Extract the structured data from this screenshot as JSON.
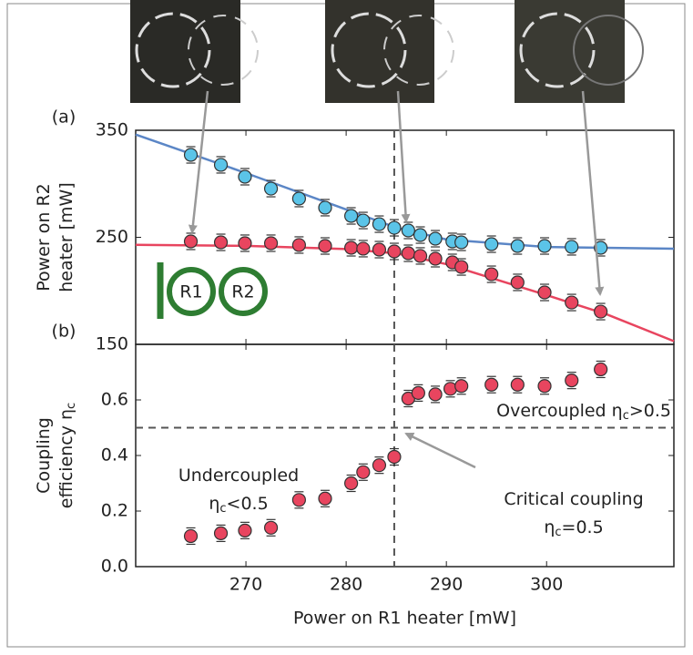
{
  "chart_data": [
    {
      "type": "scatter",
      "panel_label": "(a)",
      "ylabel": [
        "Power on R2",
        "heater [mW]"
      ],
      "xlim": [
        259,
        312.7
      ],
      "xticks": [
        270,
        280,
        290,
        300
      ],
      "ylim": [
        150,
        350
      ],
      "yticks": [
        150,
        250,
        350
      ],
      "vline": 284.8,
      "icon_labels": [
        "R1",
        "R2"
      ],
      "x": [
        264.5,
        267.5,
        269.9,
        272.5,
        275.3,
        277.9,
        280.5,
        281.7,
        283.3,
        284.8,
        286.2,
        287.4,
        288.9,
        290.6,
        291.5,
        294.5,
        297.1,
        299.8,
        302.5,
        305.4
      ],
      "series": [
        {
          "color": "#5bc4e8",
          "values": [
            327,
            317.7,
            306.6,
            295.5,
            286.2,
            277.7,
            270,
            265.7,
            262.3,
            258.9,
            256.4,
            252.1,
            248.7,
            246.2,
            245.3,
            243.6,
            241.9,
            241.9,
            241.1,
            240.2
          ]
        },
        {
          "color": "#e8455f",
          "values": [
            246.2,
            245.3,
            244.5,
            244.5,
            242.8,
            241.9,
            240.2,
            239.4,
            238.5,
            236.8,
            235.1,
            232.6,
            230,
            226.6,
            222.3,
            215.5,
            207.9,
            198.5,
            189.1,
            180.6
          ]
        }
      ],
      "fit_lines": [
        {
          "color": "#5b86c6",
          "x": [
            259,
            270,
            280,
            285,
            290,
            300,
            312.7
          ],
          "values": [
            346,
            310,
            276,
            259,
            248,
            241,
            239.4
          ]
        },
        {
          "color": "#e8455f",
          "x": [
            259,
            270,
            280,
            285,
            290,
            300,
            306,
            312.7
          ],
          "values": [
            243,
            242,
            239,
            235,
            225,
            196,
            178,
            153
          ]
        }
      ]
    },
    {
      "type": "scatter",
      "panel_label": "(b)",
      "xlabel": "Power on R1 heater [mW]",
      "ylabel": [
        "Coupling",
        "efficiency η",
        "c"
      ],
      "xlim": [
        259,
        312.7
      ],
      "xticks": [
        270,
        280,
        290,
        300
      ],
      "ylim": [
        0,
        0.8
      ],
      "yticks": [
        {
          "value": 0,
          "label": "0.0"
        },
        0.2,
        0.4,
        0.6
      ],
      "vline": 284.8,
      "hline": 0.5,
      "x": [
        264.5,
        267.5,
        269.9,
        272.5,
        275.3,
        277.9,
        280.5,
        281.7,
        283.3,
        284.8,
        286.2,
        287.2,
        288.9,
        290.4,
        291.5,
        294.5,
        297.1,
        299.8,
        302.5,
        305.4
      ],
      "series": [
        {
          "color": "#e8455f",
          "values": [
            0.11,
            0.12,
            0.13,
            0.14,
            0.24,
            0.245,
            0.3,
            0.34,
            0.365,
            0.395,
            0.605,
            0.625,
            0.62,
            0.64,
            0.65,
            0.655,
            0.655,
            0.65,
            0.67,
            0.71
          ]
        }
      ],
      "annotations": [
        [
          "Overcoupled η",
          "c",
          ">0.5"
        ],
        [
          "Undercoupled"
        ],
        [
          "η",
          "c",
          "<0.5"
        ],
        [
          "Critical coupling"
        ],
        [
          "η",
          "c",
          "=0.5"
        ]
      ]
    }
  ]
}
